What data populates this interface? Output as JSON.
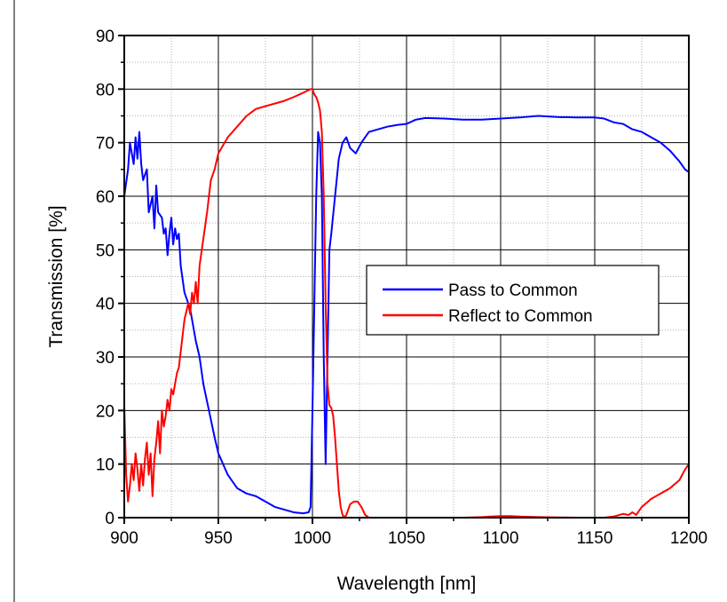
{
  "chart_data": {
    "type": "line",
    "title": "",
    "xlabel": "Wavelength [nm]",
    "ylabel": "Transmission [%]",
    "xlim": [
      900,
      1200
    ],
    "ylim": [
      0,
      90
    ],
    "x_major_ticks": [
      "900",
      "950",
      "1000",
      "1050",
      "1100",
      "1150",
      "1200"
    ],
    "y_major_ticks": [
      "0",
      "10",
      "20",
      "30",
      "40",
      "50",
      "60",
      "70",
      "80",
      "90"
    ],
    "grid": true,
    "legend": "center-right",
    "series": [
      {
        "name": "Pass to Common",
        "color": "#0000ff",
        "points": [
          [
            900,
            60
          ],
          [
            902,
            65
          ],
          [
            903,
            70
          ],
          [
            905,
            66
          ],
          [
            906,
            71
          ],
          [
            907,
            67
          ],
          [
            908,
            72
          ],
          [
            909,
            66
          ],
          [
            910,
            63
          ],
          [
            912,
            65
          ],
          [
            913,
            57
          ],
          [
            915,
            60
          ],
          [
            916,
            54
          ],
          [
            917,
            62
          ],
          [
            918,
            57
          ],
          [
            920,
            56
          ],
          [
            921,
            53
          ],
          [
            922,
            54
          ],
          [
            923,
            49
          ],
          [
            924,
            53
          ],
          [
            925,
            56
          ],
          [
            926,
            51
          ],
          [
            927,
            54
          ],
          [
            928,
            52
          ],
          [
            929,
            53
          ],
          [
            930,
            47
          ],
          [
            932,
            42
          ],
          [
            935,
            39
          ],
          [
            938,
            33
          ],
          [
            940,
            30
          ],
          [
            942,
            25
          ],
          [
            945,
            20
          ],
          [
            948,
            15
          ],
          [
            950,
            12
          ],
          [
            955,
            8
          ],
          [
            960,
            5.5
          ],
          [
            965,
            4.5
          ],
          [
            970,
            4
          ],
          [
            975,
            3
          ],
          [
            980,
            2
          ],
          [
            985,
            1.5
          ],
          [
            990,
            1
          ],
          [
            995,
            0.8
          ],
          [
            998,
            1
          ],
          [
            999,
            2
          ],
          [
            1000,
            20
          ],
          [
            1001,
            40
          ],
          [
            1002,
            60
          ],
          [
            1003,
            72
          ],
          [
            1004,
            70
          ],
          [
            1005,
            60
          ],
          [
            1006,
            30
          ],
          [
            1007,
            10
          ],
          [
            1008,
            30
          ],
          [
            1009,
            50
          ],
          [
            1010,
            53
          ],
          [
            1012,
            60
          ],
          [
            1014,
            67
          ],
          [
            1016,
            70
          ],
          [
            1018,
            71
          ],
          [
            1020,
            69
          ],
          [
            1023,
            68
          ],
          [
            1026,
            70
          ],
          [
            1030,
            72
          ],
          [
            1035,
            72.5
          ],
          [
            1040,
            73
          ],
          [
            1045,
            73.3
          ],
          [
            1050,
            73.5
          ],
          [
            1055,
            74.3
          ],
          [
            1060,
            74.6
          ],
          [
            1070,
            74.5
          ],
          [
            1080,
            74.3
          ],
          [
            1090,
            74.3
          ],
          [
            1100,
            74.5
          ],
          [
            1110,
            74.7
          ],
          [
            1120,
            75
          ],
          [
            1130,
            74.8
          ],
          [
            1140,
            74.7
          ],
          [
            1150,
            74.7
          ],
          [
            1155,
            74.5
          ],
          [
            1160,
            73.8
          ],
          [
            1165,
            73.5
          ],
          [
            1170,
            72.5
          ],
          [
            1175,
            72
          ],
          [
            1180,
            71
          ],
          [
            1185,
            70
          ],
          [
            1190,
            68.5
          ],
          [
            1195,
            66.5
          ],
          [
            1198,
            65
          ],
          [
            1200,
            64.5
          ]
        ]
      },
      {
        "name": "Reflect to Common",
        "color": "#ff0000",
        "points": [
          [
            900,
            21
          ],
          [
            901,
            8
          ],
          [
            902,
            3
          ],
          [
            903,
            6
          ],
          [
            904,
            10
          ],
          [
            905,
            7
          ],
          [
            906,
            12
          ],
          [
            907,
            9
          ],
          [
            908,
            5
          ],
          [
            909,
            10
          ],
          [
            910,
            6
          ],
          [
            911,
            11
          ],
          [
            912,
            14
          ],
          [
            913,
            8
          ],
          [
            914,
            12
          ],
          [
            915,
            4
          ],
          [
            916,
            11
          ],
          [
            917,
            14
          ],
          [
            918,
            18
          ],
          [
            919,
            12
          ],
          [
            920,
            20
          ],
          [
            921,
            17
          ],
          [
            922,
            19
          ],
          [
            923,
            22
          ],
          [
            924,
            20
          ],
          [
            925,
            24
          ],
          [
            926,
            23
          ],
          [
            927,
            25
          ],
          [
            928,
            27
          ],
          [
            929,
            28
          ],
          [
            930,
            31
          ],
          [
            932,
            37
          ],
          [
            934,
            40
          ],
          [
            935,
            38
          ],
          [
            936,
            42
          ],
          [
            937,
            40
          ],
          [
            938,
            44
          ],
          [
            939,
            40
          ],
          [
            940,
            47
          ],
          [
            942,
            52
          ],
          [
            944,
            57
          ],
          [
            946,
            63
          ],
          [
            948,
            65
          ],
          [
            950,
            68
          ],
          [
            955,
            71
          ],
          [
            960,
            73
          ],
          [
            965,
            75
          ],
          [
            970,
            76.3
          ],
          [
            975,
            76.8
          ],
          [
            980,
            77.3
          ],
          [
            985,
            77.8
          ],
          [
            990,
            78.5
          ],
          [
            995,
            79.3
          ],
          [
            999,
            80
          ],
          [
            1000,
            80
          ],
          [
            1001,
            79
          ],
          [
            1002,
            78.5
          ],
          [
            1003,
            77.5
          ],
          [
            1004,
            76
          ],
          [
            1005,
            72
          ],
          [
            1006,
            60
          ],
          [
            1007,
            40
          ],
          [
            1008,
            25
          ],
          [
            1009,
            21
          ],
          [
            1010,
            20.5
          ],
          [
            1011,
            19
          ],
          [
            1012,
            15
          ],
          [
            1013,
            10
          ],
          [
            1014,
            5
          ],
          [
            1015,
            2
          ],
          [
            1016,
            0.5
          ],
          [
            1017,
            0
          ],
          [
            1018,
            0.5
          ],
          [
            1019,
            1.5
          ],
          [
            1020,
            2.5
          ],
          [
            1022,
            3
          ],
          [
            1024,
            3
          ],
          [
            1026,
            2
          ],
          [
            1028,
            0.5
          ],
          [
            1030,
            0
          ],
          [
            1040,
            0
          ],
          [
            1060,
            0
          ],
          [
            1080,
            0
          ],
          [
            1090,
            0.1
          ],
          [
            1095,
            0.2
          ],
          [
            1100,
            0.3
          ],
          [
            1105,
            0.3
          ],
          [
            1110,
            0.2
          ],
          [
            1120,
            0.1
          ],
          [
            1140,
            0
          ],
          [
            1155,
            0
          ],
          [
            1160,
            0.2
          ],
          [
            1165,
            0.7
          ],
          [
            1168,
            0.5
          ],
          [
            1170,
            1
          ],
          [
            1172,
            0.5
          ],
          [
            1175,
            2
          ],
          [
            1180,
            3.5
          ],
          [
            1185,
            4.5
          ],
          [
            1190,
            5.5
          ],
          [
            1195,
            7
          ],
          [
            1198,
            9
          ],
          [
            1200,
            10
          ]
        ]
      }
    ]
  }
}
